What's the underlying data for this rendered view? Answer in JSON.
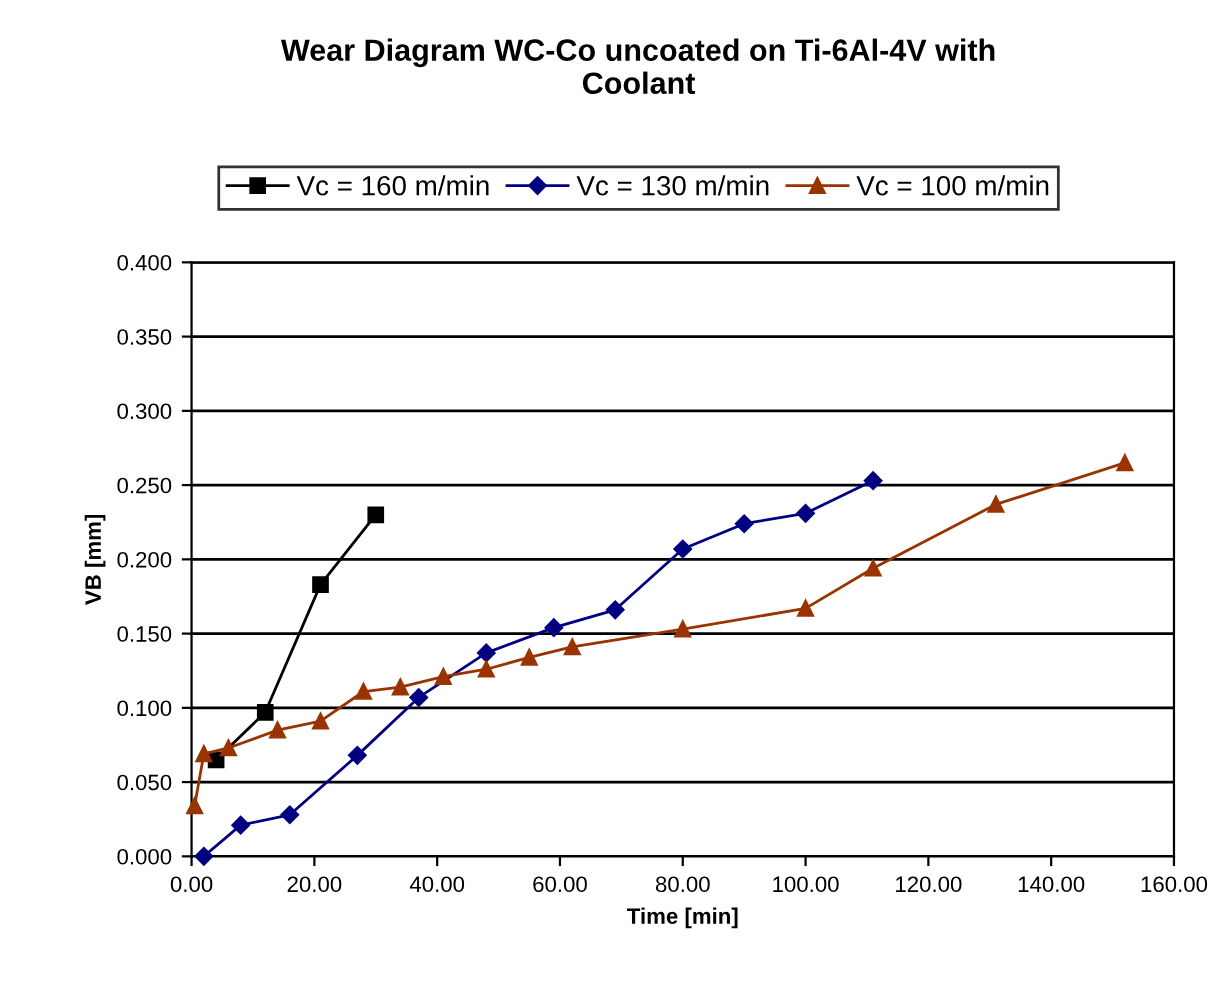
{
  "chart_data": {
    "type": "line",
    "title": "Wear Diagram WC-Co uncoated on Ti-6Al-4V with\nCoolant",
    "xlabel": "Time [min]",
    "ylabel": "VB [mm]",
    "series": [
      {
        "name": "Vc = 160 m/min",
        "color": "#000000",
        "marker": "square",
        "x": [
          4,
          12,
          21,
          30
        ],
        "values": [
          0.065,
          0.097,
          0.183,
          0.23
        ]
      },
      {
        "name": "Vc = 130 m/min",
        "color": "#000080",
        "marker": "diamond",
        "x": [
          2,
          8,
          16,
          27,
          37,
          48,
          59,
          69,
          80,
          90,
          100,
          111
        ],
        "values": [
          0.0,
          0.021,
          0.028,
          0.068,
          0.107,
          0.137,
          0.154,
          0.166,
          0.207,
          0.224,
          0.231,
          0.253
        ]
      },
      {
        "name": "Vc = 100 m/min",
        "color": "#993300",
        "marker": "triangle",
        "x": [
          0.5,
          2,
          6,
          14,
          21,
          28,
          34,
          41,
          48,
          55,
          62,
          80,
          100,
          111,
          131,
          152
        ],
        "values": [
          0.034,
          0.069,
          0.073,
          0.085,
          0.091,
          0.111,
          0.114,
          0.121,
          0.126,
          0.134,
          0.141,
          0.153,
          0.167,
          0.194,
          0.237,
          0.265
        ]
      }
    ],
    "xlim": [
      0,
      160
    ],
    "xticks": [
      {
        "value": 0,
        "label": "0.00"
      },
      {
        "value": 20,
        "label": "20.00"
      },
      {
        "value": 40,
        "label": "40.00"
      },
      {
        "value": 60,
        "label": "60.00"
      },
      {
        "value": 80,
        "label": "80.00"
      },
      {
        "value": 100,
        "label": "100.00"
      },
      {
        "value": 120,
        "label": "120.00"
      },
      {
        "value": 140,
        "label": "140.00"
      },
      {
        "value": 160,
        "label": "160.00"
      }
    ],
    "ylim": [
      0,
      0.4
    ],
    "yticks": [
      {
        "value": 0,
        "label": "0.000"
      },
      {
        "value": 0.05,
        "label": "0.050"
      },
      {
        "value": 0.1,
        "label": "0.100"
      },
      {
        "value": 0.15,
        "label": "0.150"
      },
      {
        "value": 0.2,
        "label": "0.200"
      },
      {
        "value": 0.25,
        "label": "0.250"
      },
      {
        "value": 0.3,
        "label": "0.300"
      },
      {
        "value": 0.35,
        "label": "0.350"
      },
      {
        "value": 0.4,
        "label": "0.400"
      }
    ],
    "grid": "y",
    "legend": "top",
    "line_style": "solid"
  }
}
